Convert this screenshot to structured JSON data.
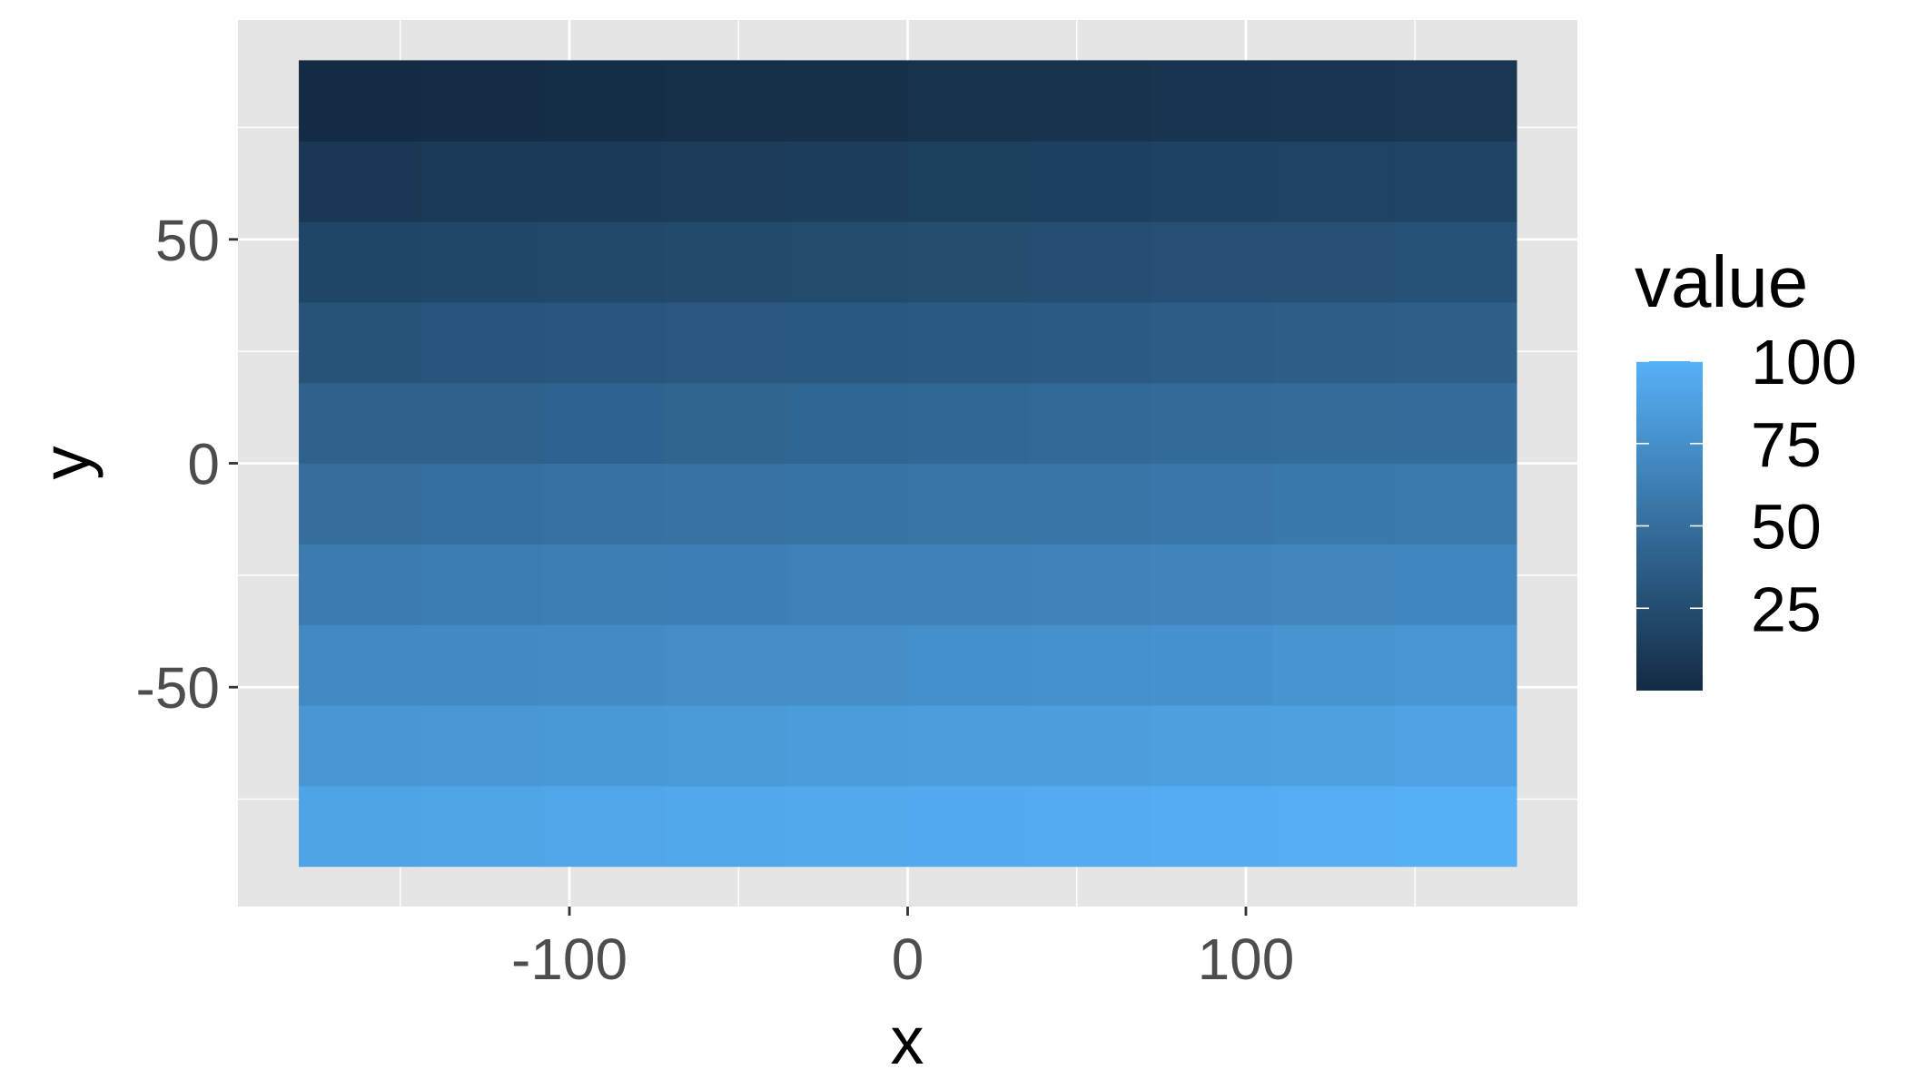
{
  "chart_data": {
    "type": "heatmap",
    "xlabel": "x",
    "ylabel": "y",
    "xlim": [
      -180,
      180
    ],
    "ylim": [
      -90,
      90
    ],
    "x_breaks": [
      -100,
      0,
      100
    ],
    "x_tick_labels": [
      "-100",
      "0",
      "100"
    ],
    "y_breaks": [
      -50,
      0,
      50
    ],
    "y_tick_labels": [
      "-50",
      "0",
      "50"
    ],
    "x_centers": [
      -162,
      -126,
      -90,
      -54,
      -18,
      18,
      54,
      90,
      126,
      162
    ],
    "y_centers": [
      -81,
      -63,
      -45,
      -27,
      -9,
      9,
      27,
      45,
      63,
      81
    ],
    "values": [
      [
        90,
        91,
        92,
        93,
        94,
        95,
        96,
        97,
        98,
        99
      ],
      [
        80,
        81,
        82,
        83,
        84,
        85,
        86,
        87,
        88,
        89
      ],
      [
        70,
        71,
        72,
        73,
        74,
        75,
        76,
        77,
        78,
        79
      ],
      [
        60,
        61,
        62,
        63,
        64,
        65,
        66,
        67,
        68,
        69
      ],
      [
        50,
        51,
        52,
        53,
        54,
        55,
        56,
        57,
        58,
        59
      ],
      [
        40,
        41,
        42,
        43,
        44,
        45,
        46,
        47,
        48,
        49
      ],
      [
        30,
        31,
        32,
        33,
        34,
        35,
        36,
        37,
        38,
        39
      ],
      [
        20,
        21,
        22,
        23,
        24,
        25,
        26,
        27,
        28,
        29
      ],
      [
        10,
        11,
        12,
        13,
        14,
        15,
        16,
        17,
        18,
        19
      ],
      [
        0,
        1,
        2,
        3,
        4,
        5,
        6,
        7,
        8,
        9
      ]
    ],
    "legend": {
      "title": "value",
      "breaks": [
        25,
        50,
        75,
        100
      ],
      "labels": [
        "25",
        "50",
        "75",
        "100"
      ],
      "limits": [
        0,
        100
      ],
      "low_color": "#132B43",
      "high_color": "#56B1F7",
      "position": "right"
    },
    "grid": true,
    "panel_background": "#E5E5E5",
    "grid_color": "#FFFFFF"
  }
}
